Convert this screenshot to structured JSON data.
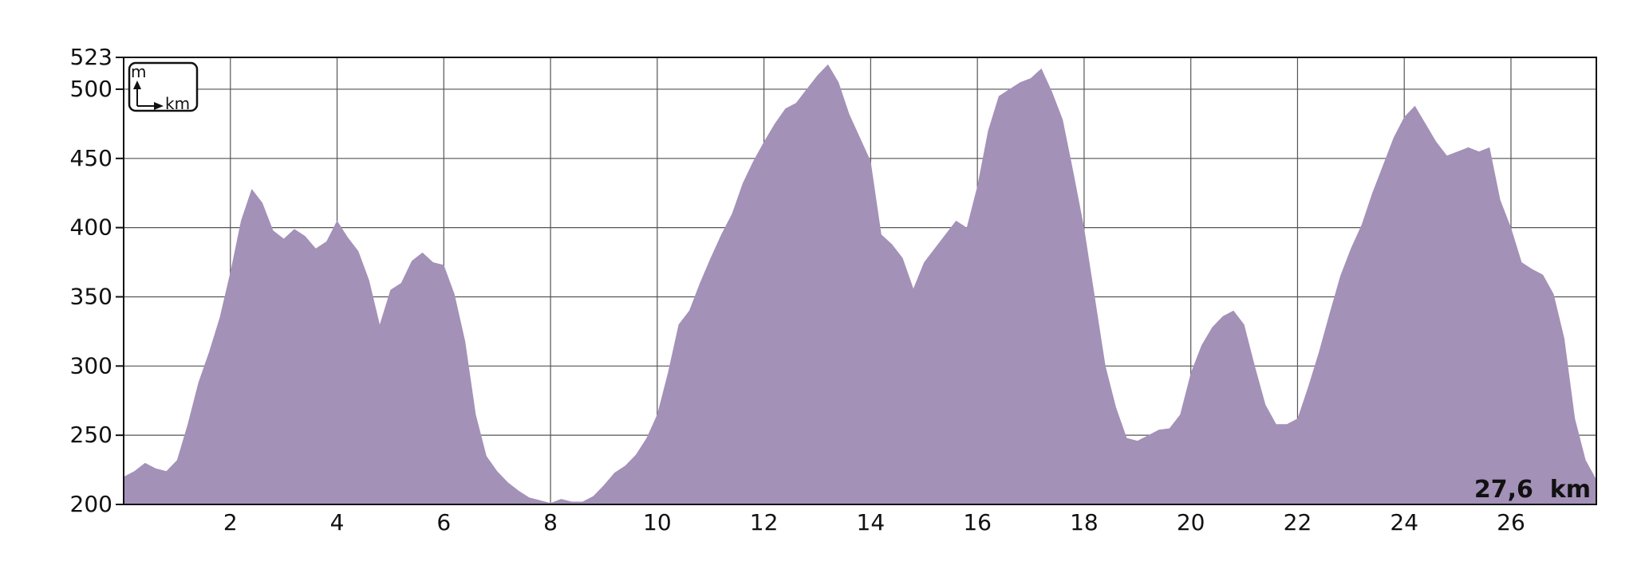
{
  "chart_data": {
    "type": "area",
    "title": "",
    "xlabel": "",
    "ylabel": "",
    "xlim": [
      0,
      27.6
    ],
    "ylim": [
      200,
      523
    ],
    "x_ticks": [
      2,
      4,
      6,
      8,
      10,
      12,
      14,
      16,
      18,
      20,
      22,
      24,
      26
    ],
    "y_ticks": [
      200,
      250,
      300,
      350,
      400,
      450,
      500,
      523
    ],
    "grid": true,
    "fill_color": "#a391b8",
    "axis_unit_box": {
      "y_unit": "m",
      "x_unit": "km"
    },
    "total_distance_label": "27,6  km",
    "series": [
      {
        "x": [
          0,
          0.2,
          0.4,
          0.6,
          0.8,
          1.0,
          1.2,
          1.4,
          1.6,
          1.8,
          2.0,
          2.2,
          2.4,
          2.6,
          2.8,
          3.0,
          3.2,
          3.4,
          3.6,
          3.8,
          4.0,
          4.2,
          4.4,
          4.6,
          4.8,
          5.0,
          5.2,
          5.4,
          5.6,
          5.8,
          6.0,
          6.2,
          6.4,
          6.6,
          6.8,
          7.0,
          7.2,
          7.4,
          7.6,
          7.8,
          8.0,
          8.2,
          8.4,
          8.6,
          8.8,
          9.0,
          9.2,
          9.4,
          9.6,
          9.8,
          10.0,
          10.2,
          10.4,
          10.6,
          10.8,
          11.0,
          11.2,
          11.4,
          11.6,
          11.8,
          12.0,
          12.2,
          12.4,
          12.6,
          12.8,
          13.0,
          13.2,
          13.4,
          13.6,
          13.8,
          14.0,
          14.2,
          14.4,
          14.6,
          14.8,
          15.0,
          15.2,
          15.4,
          15.6,
          15.8,
          16.0,
          16.2,
          16.4,
          16.6,
          16.8,
          17.0,
          17.2,
          17.4,
          17.6,
          17.8,
          18.0,
          18.2,
          18.4,
          18.6,
          18.8,
          19.0,
          19.2,
          19.4,
          19.6,
          19.8,
          20.0,
          20.2,
          20.4,
          20.6,
          20.8,
          21.0,
          21.2,
          21.4,
          21.6,
          21.8,
          22.0,
          22.2,
          22.4,
          22.6,
          22.8,
          23.0,
          23.2,
          23.4,
          23.6,
          23.8,
          24.0,
          24.2,
          24.4,
          24.6,
          24.8,
          25.0,
          25.2,
          25.4,
          25.6,
          25.8,
          26.0,
          26.2,
          26.4,
          26.6,
          26.8,
          27.0,
          27.2,
          27.4,
          27.6
        ],
        "y": [
          220,
          224,
          230,
          226,
          224,
          232,
          258,
          288,
          310,
          335,
          368,
          405,
          428,
          418,
          398,
          392,
          399,
          394,
          385,
          390,
          405,
          393,
          383,
          362,
          330,
          355,
          360,
          376,
          382,
          375,
          373,
          352,
          318,
          265,
          235,
          224,
          216,
          210,
          205,
          203,
          201,
          204,
          202,
          202,
          206,
          214,
          223,
          228,
          236,
          248,
          265,
          295,
          330,
          340,
          360,
          378,
          395,
          410,
          432,
          448,
          462,
          475,
          486,
          490,
          500,
          510,
          518,
          505,
          482,
          465,
          448,
          395,
          388,
          378,
          356,
          375,
          385,
          395,
          405,
          400,
          430,
          470,
          495,
          500,
          505,
          508,
          515,
          498,
          478,
          440,
          400,
          350,
          300,
          270,
          248,
          246,
          250,
          254,
          255,
          265,
          295,
          315,
          328,
          336,
          340,
          330,
          300,
          272,
          258,
          258,
          262,
          285,
          310,
          338,
          365,
          385,
          402,
          425,
          445,
          465,
          480,
          488,
          475,
          462,
          452,
          455,
          458,
          455,
          458,
          420,
          400,
          375,
          370,
          366,
          352,
          320,
          262,
          232,
          218
        ]
      }
    ]
  }
}
